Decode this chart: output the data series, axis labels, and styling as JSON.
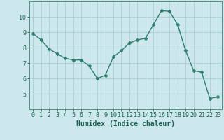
{
  "x": [
    0,
    1,
    2,
    3,
    4,
    5,
    6,
    7,
    8,
    9,
    10,
    11,
    12,
    13,
    14,
    15,
    16,
    17,
    18,
    19,
    20,
    21,
    22,
    23
  ],
  "y": [
    8.9,
    8.5,
    7.9,
    7.6,
    7.3,
    7.2,
    7.2,
    6.8,
    6.0,
    6.2,
    7.4,
    7.8,
    8.3,
    8.5,
    8.6,
    9.5,
    10.4,
    10.35,
    9.5,
    7.8,
    6.5,
    6.4,
    4.7,
    4.8
  ],
  "xlabel": "Humidex (Indice chaleur)",
  "ylim": [
    4,
    11
  ],
  "xlim": [
    -0.5,
    23.5
  ],
  "yticks": [
    5,
    6,
    7,
    8,
    9,
    10
  ],
  "xticks": [
    0,
    1,
    2,
    3,
    4,
    5,
    6,
    7,
    8,
    9,
    10,
    11,
    12,
    13,
    14,
    15,
    16,
    17,
    18,
    19,
    20,
    21,
    22,
    23
  ],
  "line_color": "#2e7d6e",
  "marker": "D",
  "markersize": 2.5,
  "bg_color": "#cce8ec",
  "grid_color": "#aacdd4",
  "label_color": "#1a5c52",
  "tick_color": "#1a5c52",
  "spine_color": "#4a9080",
  "xlabel_fontsize": 7,
  "tick_fontsize": 6,
  "linewidth": 1.0
}
